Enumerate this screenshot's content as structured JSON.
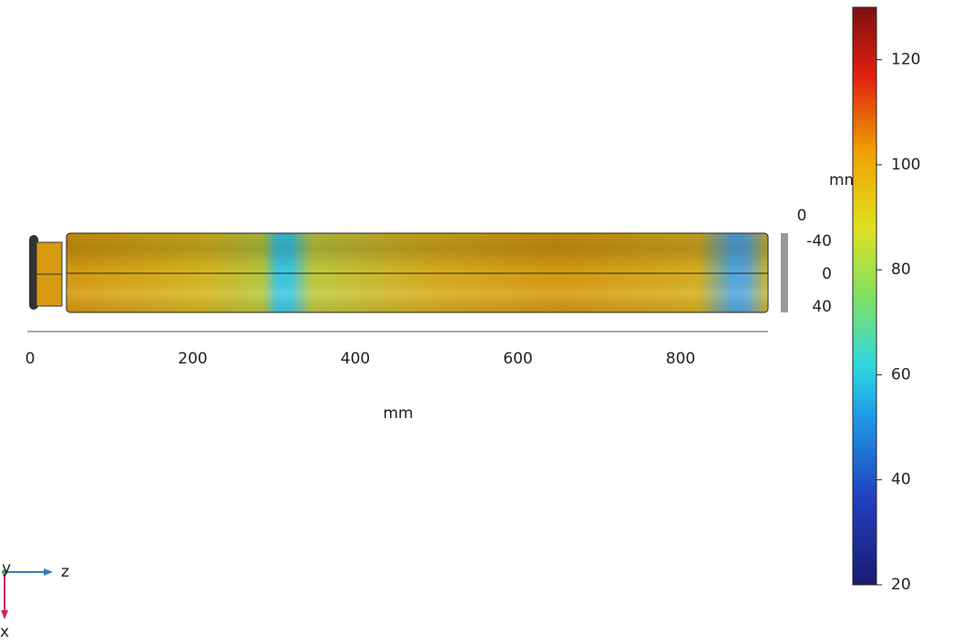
{
  "view": {
    "horizontal_axis": {
      "ticks": [
        0,
        200,
        400,
        600,
        800
      ],
      "unit": "mm"
    },
    "vertical_axis": {
      "ticks": [
        -40,
        0,
        40
      ],
      "unit": "mm",
      "extra_label": "0"
    },
    "colorbar": {
      "range": [
        20,
        130
      ],
      "ticks": [
        20,
        40,
        60,
        80,
        100,
        120
      ]
    },
    "triad": {
      "y": "y",
      "z": "z",
      "x": "x"
    }
  }
}
